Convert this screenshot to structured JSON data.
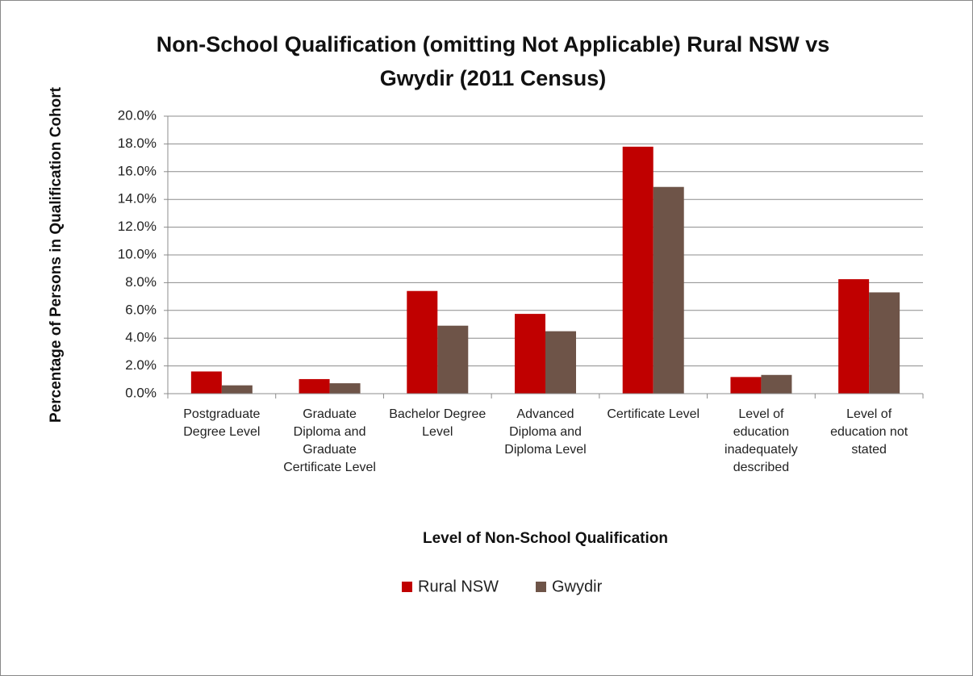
{
  "chart_data": {
    "type": "bar",
    "title": "Non-School Qualification (omitting Not Applicable) Rural NSW vs Gwydir (2011 Census)",
    "x_label": "Level of Non-School Qualification",
    "y_label": "Percentage of Persons in Qualification Cohort",
    "categories": [
      "Postgraduate Degree Level",
      "Graduate Diploma and Graduate Certificate Level",
      "Bachelor Degree Level",
      "Advanced Diploma and Diploma Level",
      "Certificate Level",
      "Level of education inadequately described",
      "Level of education not stated"
    ],
    "series": [
      {
        "name": "Rural NSW",
        "color": "#c00000",
        "values": [
          1.6,
          1.05,
          7.4,
          5.75,
          17.8,
          1.2,
          8.25
        ]
      },
      {
        "name": "Gwydir",
        "color": "#6e5448",
        "values": [
          0.6,
          0.75,
          4.9,
          4.5,
          14.9,
          1.35,
          7.3
        ]
      }
    ],
    "ylim": [
      0,
      20
    ],
    "yticks": [
      {
        "value": 0,
        "label": "0.0%"
      },
      {
        "value": 2,
        "label": "2.0%"
      },
      {
        "value": 4,
        "label": "4.0%"
      },
      {
        "value": 6,
        "label": "6.0%"
      },
      {
        "value": 8,
        "label": "8.0%"
      },
      {
        "value": 10,
        "label": "10.0%"
      },
      {
        "value": 12,
        "label": "12.0%"
      },
      {
        "value": 14,
        "label": "14.0%"
      },
      {
        "value": 16,
        "label": "16.0%"
      },
      {
        "value": 18,
        "label": "18.0%"
      },
      {
        "value": 20,
        "label": "20.0%"
      }
    ],
    "grid": true,
    "legend": "bottom"
  }
}
